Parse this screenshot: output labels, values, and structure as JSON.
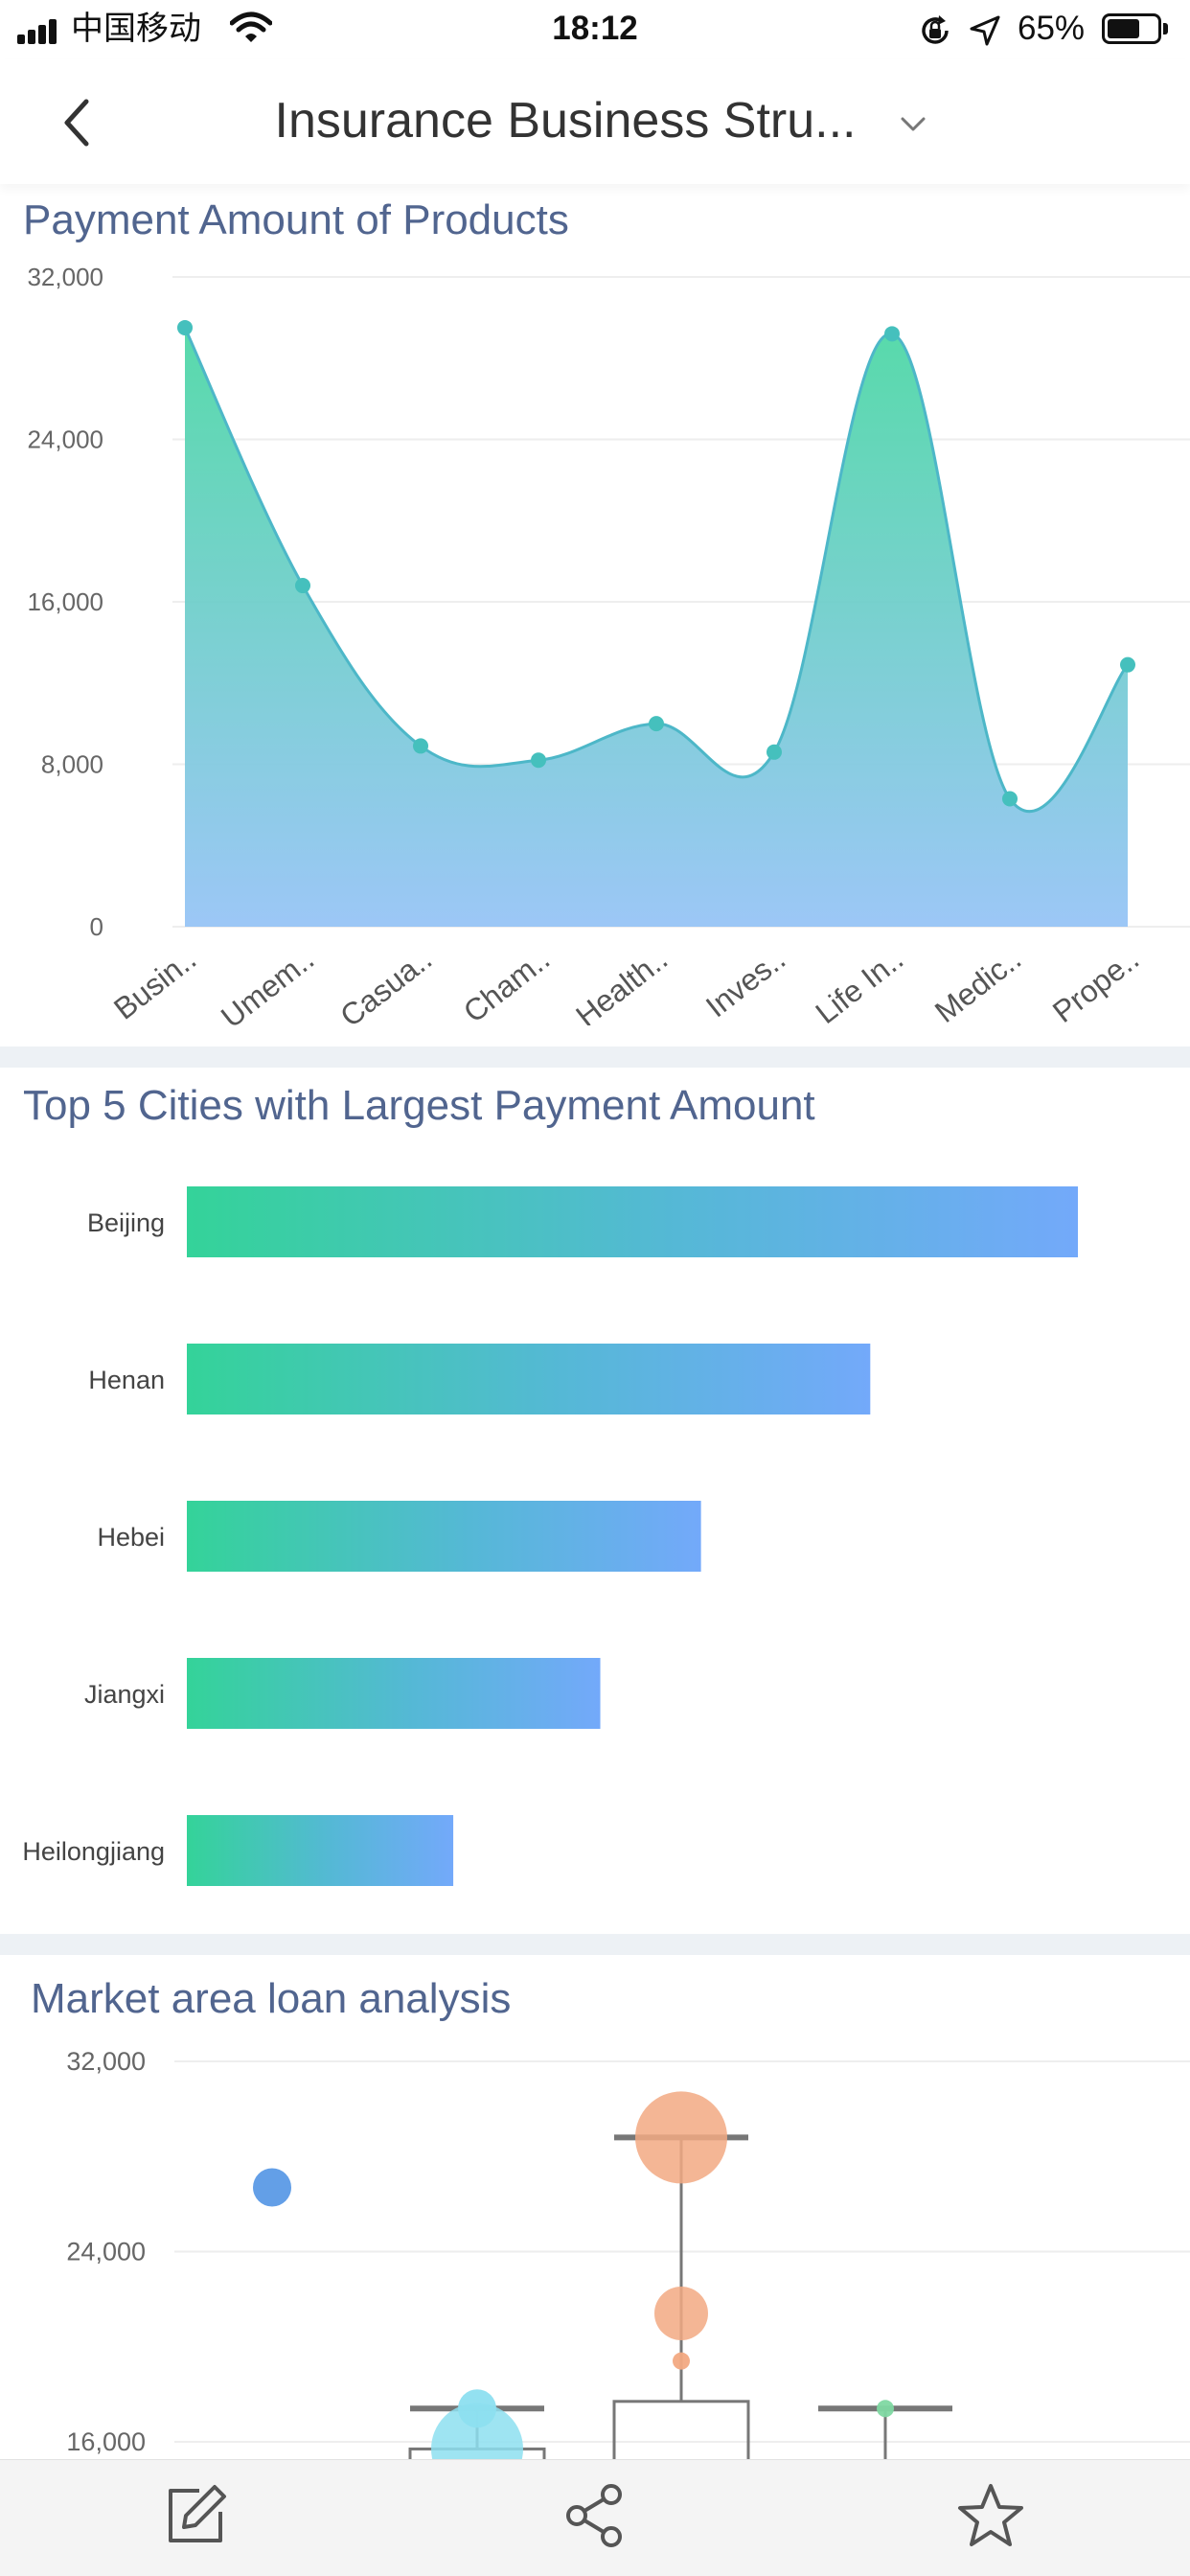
{
  "status_bar": {
    "carrier": "中国移动",
    "time": "18:12",
    "battery": "65%",
    "battery_level": 0.65,
    "icons": [
      "signal-icon",
      "wifi-icon",
      "rotation-lock-icon",
      "location-icon",
      "battery-icon"
    ]
  },
  "nav": {
    "title": "Insurance Business Stru...",
    "back_icon": "chevron-left-icon",
    "dropdown_icon": "chevron-down-icon"
  },
  "colors": {
    "title": "#51658f",
    "gradient_green": "#34d399",
    "gradient_blue": "#73a9fa",
    "area_line": "#4db7c8",
    "divider": "#edf1f5"
  },
  "sections": {
    "payment": {
      "title": "Payment Amount of Products"
    },
    "cities": {
      "title": "Top 5 Cities with Largest Payment Amount"
    },
    "market": {
      "title": "Market area loan analysis"
    }
  },
  "chart_data": [
    {
      "type": "area",
      "title": "Payment Amount of Products",
      "categories": [
        "Busin..",
        "Umem..",
        "Casua..",
        "Cham..",
        "Health..",
        "Inves..",
        "Life In..",
        "Medic..",
        "Prope.."
      ],
      "values": [
        29500,
        16800,
        8900,
        8200,
        10000,
        8600,
        29200,
        6300,
        12900
      ],
      "ylim": [
        0,
        32000
      ],
      "yticks": [
        "0",
        "8,000",
        "16,000",
        "24,000",
        "32,000"
      ],
      "grid": true,
      "smooth": true
    },
    {
      "type": "bar",
      "orientation": "horizontal",
      "title": "Top 5 Cities with Largest Payment Amount",
      "categories": [
        "Beijing",
        "Henan",
        "Hebei",
        "Jiangxi",
        "Heilongjiang"
      ],
      "values": [
        1.0,
        0.767,
        0.577,
        0.464,
        0.299
      ],
      "value_scale": "relative to largest"
    },
    {
      "type": "scatter",
      "subtype": "boxplot-bubble",
      "title": "Market area loan analysis",
      "yticks": [
        "16,000",
        "24,000",
        "32,000"
      ],
      "ylim": [
        16000,
        32000
      ],
      "boxes": [
        {
          "position": 2,
          "upper_whisker": 17400,
          "box_top": 15700
        },
        {
          "position": 3,
          "upper_whisker": 28800,
          "box_top": 17700
        },
        {
          "position": 4,
          "upper_whisker": 17400
        }
      ],
      "points": [
        {
          "position": 1,
          "y": 26700,
          "size": "small",
          "color": "#5b9ae6"
        },
        {
          "position": 2,
          "y": 17400,
          "size": "small",
          "color": "#8ddff0"
        },
        {
          "position": 2,
          "y": 15700,
          "size": "large",
          "color": "#8ddff0"
        },
        {
          "position": 3,
          "y": 28800,
          "size": "large",
          "color": "#f2a982"
        },
        {
          "position": 3,
          "y": 21400,
          "size": "medium",
          "color": "#f2a982"
        },
        {
          "position": 3,
          "y": 19400,
          "size": "tiny",
          "color": "#f2a982"
        },
        {
          "position": 4,
          "y": 17400,
          "size": "tiny",
          "color": "#7fd8a2"
        }
      ]
    }
  ],
  "toolbar": {
    "items": [
      "edit-icon",
      "share-icon",
      "favorite-icon"
    ]
  }
}
